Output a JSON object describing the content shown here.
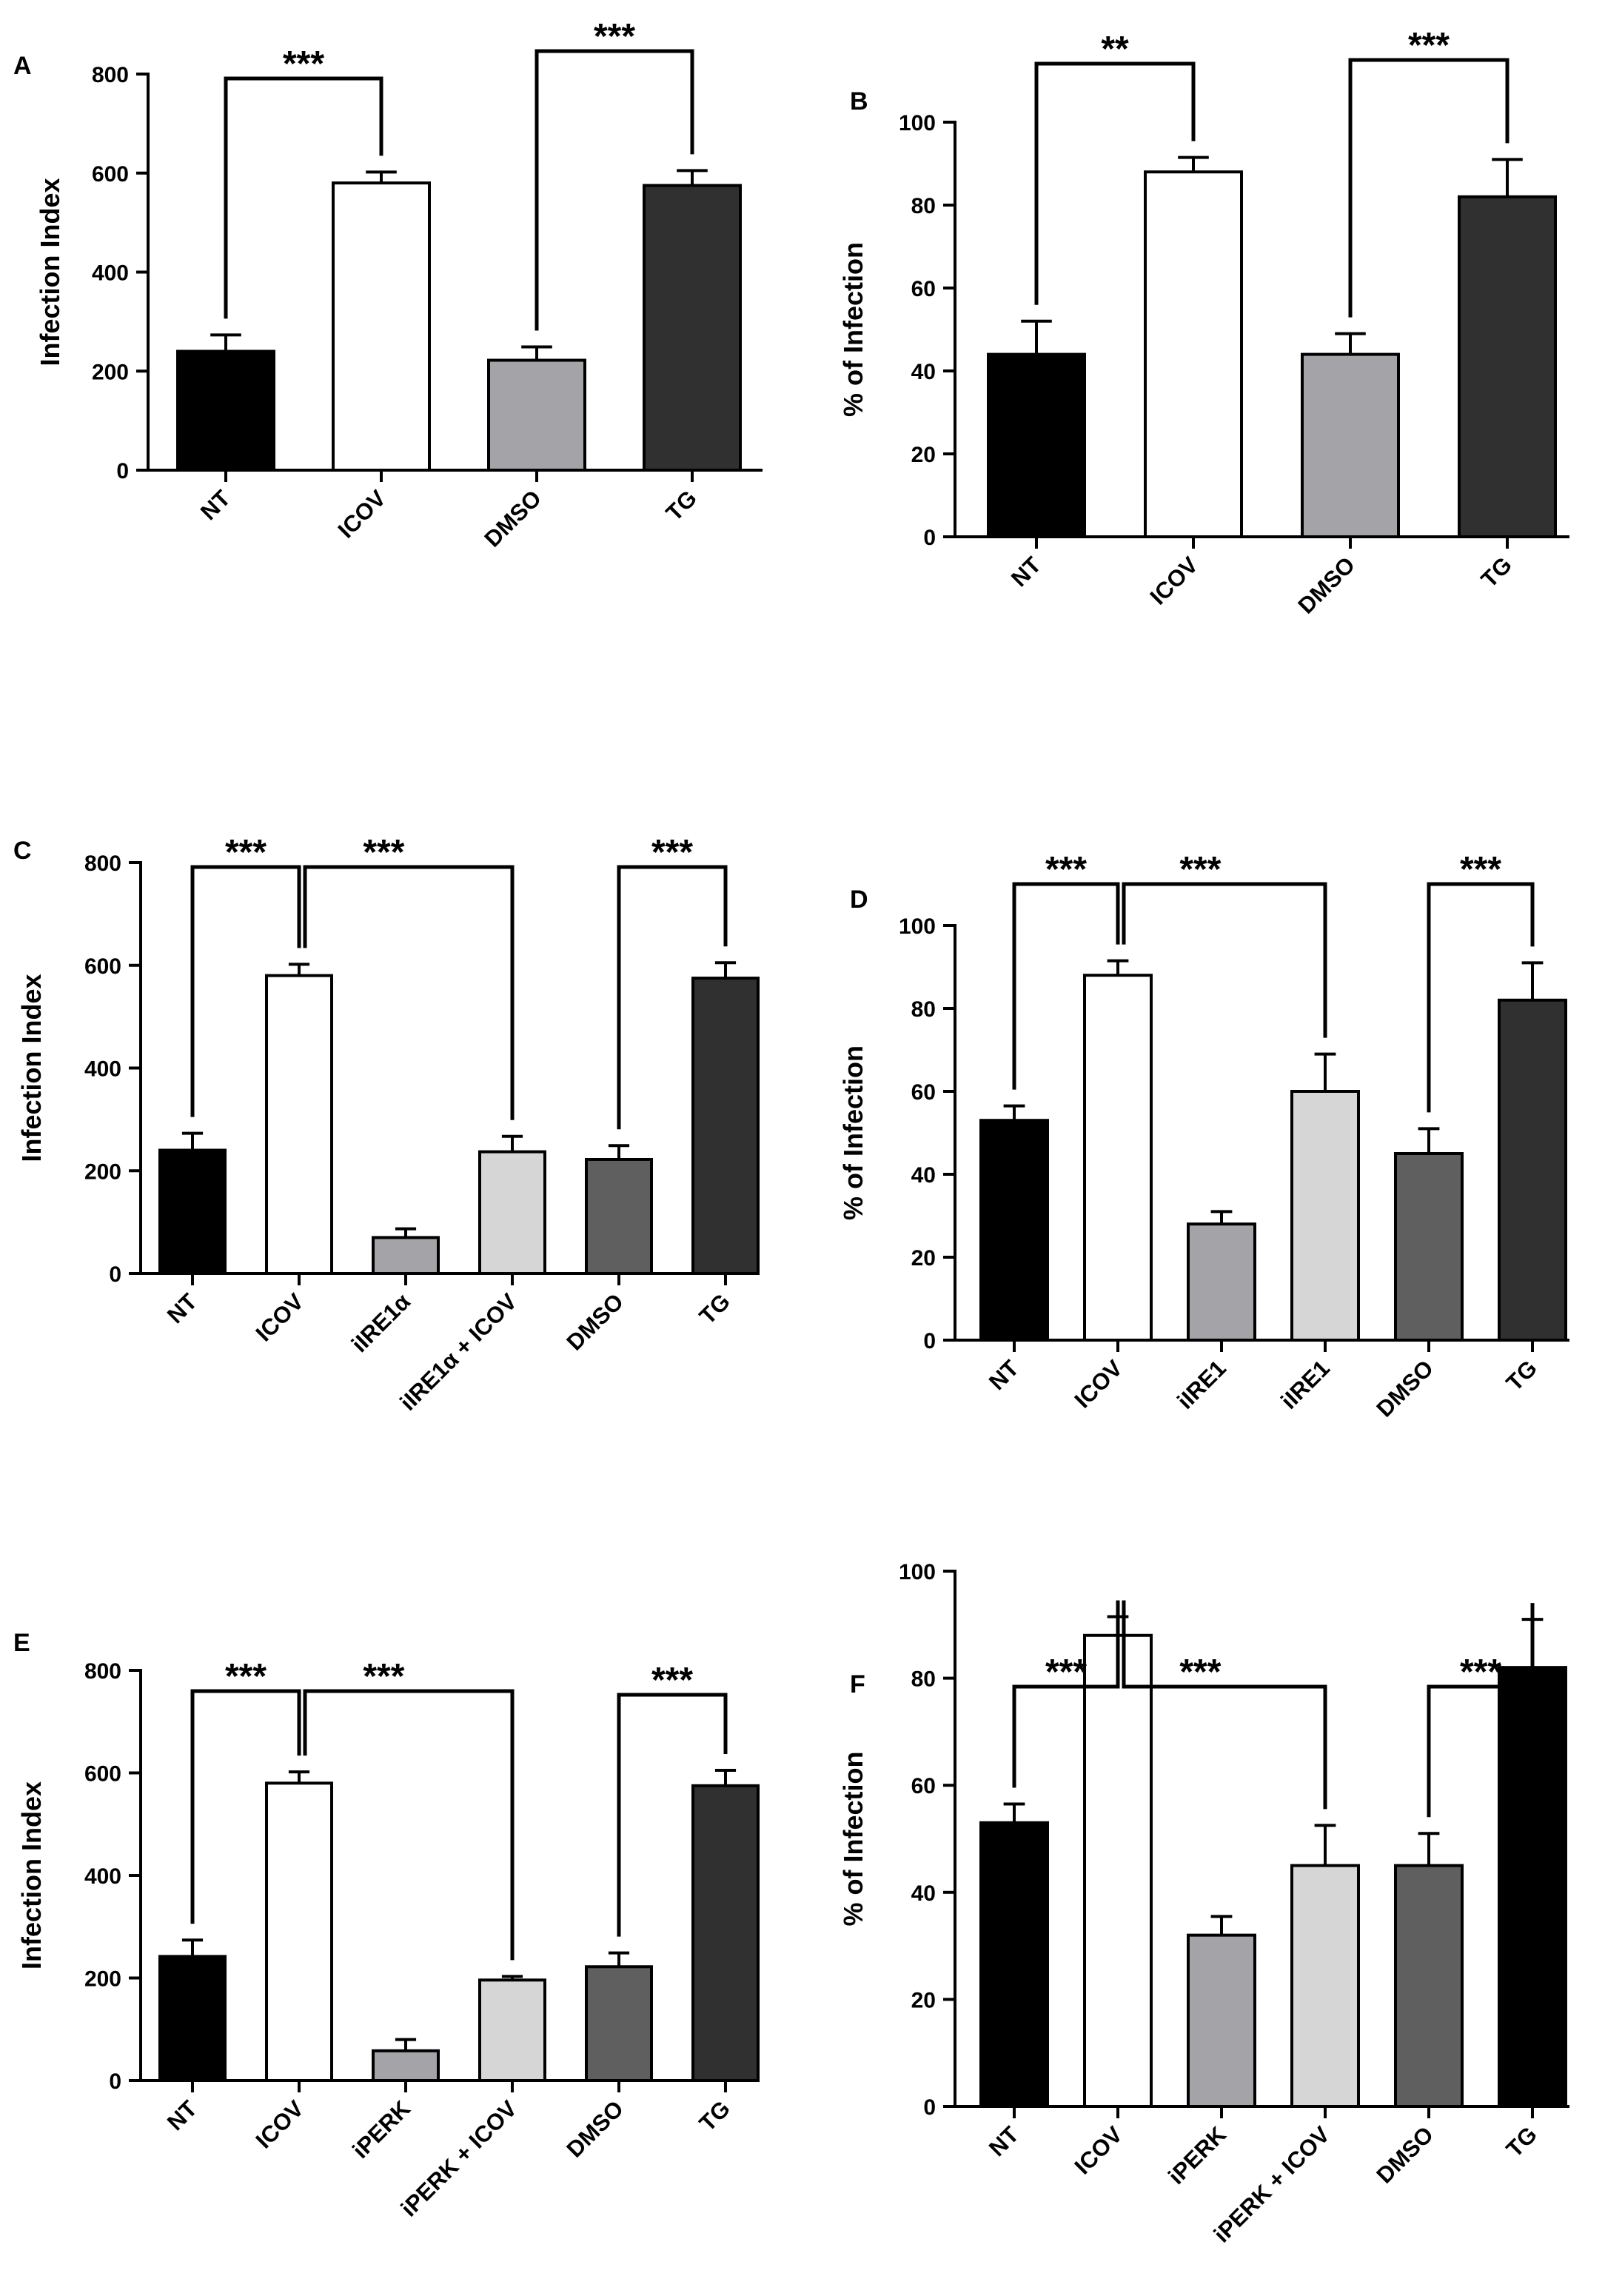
{
  "figure": {
    "colors": {
      "black": "#000000",
      "white": "#ffffff",
      "mid_gray": "#a3a3a8",
      "light_gray": "#d6d6d6",
      "dark_gray": "#5f5f5f",
      "charcoal": "#303030"
    }
  },
  "chart_data": [
    {
      "panel": "A",
      "type": "bar",
      "title": "",
      "xlabel": "",
      "ylabel": "Infection Index",
      "ylim": [
        0,
        800
      ],
      "yticks": [
        "0",
        "200",
        "400",
        "600",
        "800"
      ],
      "categories": [
        "NT",
        "ICOV",
        "DMSO",
        "TG"
      ],
      "values": [
        240,
        580,
        222,
        575
      ],
      "errors": [
        33,
        22,
        27,
        30
      ],
      "colors": [
        "black",
        "white",
        "mid_gray",
        "charcoal"
      ],
      "significance": [
        {
          "from": 0,
          "to": 1,
          "label": "***"
        },
        {
          "from": 2,
          "to": 3,
          "label": "***"
        }
      ]
    },
    {
      "panel": "B",
      "type": "bar",
      "title": "",
      "xlabel": "",
      "ylabel": "% of Infection",
      "ylim": [
        0,
        100
      ],
      "yticks": [
        "0",
        "20",
        "40",
        "60",
        "80",
        "100"
      ],
      "categories": [
        "NT",
        "ICOV",
        "DMSO",
        "TG"
      ],
      "values": [
        44,
        88,
        44,
        82
      ],
      "errors": [
        8,
        3.5,
        5,
        9
      ],
      "colors": [
        "black",
        "white",
        "mid_gray",
        "charcoal"
      ],
      "significance": [
        {
          "from": 0,
          "to": 1,
          "label": "**"
        },
        {
          "from": 2,
          "to": 3,
          "label": "***"
        }
      ]
    },
    {
      "panel": "C",
      "type": "bar",
      "title": "",
      "xlabel": "",
      "ylabel": "Infection Index",
      "ylim": [
        0,
        800
      ],
      "yticks": [
        "0",
        "200",
        "400",
        "600",
        "800"
      ],
      "categories": [
        "NT",
        "ICOV",
        "iIRE1α",
        "iIRE1α + ICOV",
        "DMSO",
        "TG"
      ],
      "values": [
        240,
        580,
        70,
        237,
        222,
        575
      ],
      "errors": [
        33,
        22,
        17,
        30,
        27,
        30
      ],
      "colors": [
        "black",
        "white",
        "mid_gray",
        "light_gray",
        "dark_gray",
        "charcoal"
      ],
      "significance": [
        {
          "from": 0,
          "to": 1,
          "label": "***"
        },
        {
          "from": 1,
          "to": 3,
          "label": "***"
        },
        {
          "from": 4,
          "to": 5,
          "label": "***"
        }
      ]
    },
    {
      "panel": "D",
      "type": "bar",
      "title": "",
      "xlabel": "",
      "ylabel": "% of Infection",
      "ylim": [
        0,
        100
      ],
      "yticks": [
        "0",
        "20",
        "40",
        "60",
        "80",
        "100"
      ],
      "categories": [
        "NT",
        "ICOV",
        "iIRE1",
        "iIRE1",
        "DMSO",
        "TG"
      ],
      "values": [
        53,
        88,
        28,
        60,
        45,
        82
      ],
      "errors": [
        3.5,
        3.5,
        3,
        9,
        6,
        9
      ],
      "colors": [
        "black",
        "white",
        "mid_gray",
        "light_gray",
        "dark_gray",
        "charcoal"
      ],
      "significance": [
        {
          "from": 0,
          "to": 1,
          "label": "***"
        },
        {
          "from": 1,
          "to": 3,
          "label": "***"
        },
        {
          "from": 4,
          "to": 5,
          "label": "***"
        }
      ]
    },
    {
      "panel": "E",
      "type": "bar",
      "title": "",
      "xlabel": "",
      "ylabel": "Infection Index",
      "ylim": [
        0,
        800
      ],
      "yticks": [
        "0",
        "200",
        "400",
        "600",
        "800"
      ],
      "categories": [
        "NT",
        "ICOV",
        "iPERK",
        "iPERK + ICOV",
        "DMSO",
        "TG"
      ],
      "values": [
        242,
        580,
        58,
        196,
        222,
        575
      ],
      "errors": [
        32,
        22,
        22,
        7,
        27,
        30
      ],
      "colors": [
        "black",
        "white",
        "mid_gray",
        "light_gray",
        "dark_gray",
        "charcoal"
      ],
      "significance": [
        {
          "from": 0,
          "to": 1,
          "label": "***"
        },
        {
          "from": 1,
          "to": 3,
          "label": "***"
        },
        {
          "from": 4,
          "to": 5,
          "label": "***"
        }
      ]
    },
    {
      "panel": "F",
      "type": "bar",
      "title": "",
      "xlabel": "",
      "ylabel": "% of Infection",
      "ylim": [
        0,
        100
      ],
      "yticks": [
        "0",
        "20",
        "40",
        "60",
        "80",
        "100"
      ],
      "categories": [
        "NT",
        "ICOV",
        "iPERK",
        "iPERK + ICOV",
        "DMSO",
        "TG"
      ],
      "values": [
        53,
        88,
        32,
        45,
        45,
        82
      ],
      "errors": [
        3.5,
        3.5,
        3.5,
        7.5,
        6,
        9
      ],
      "colors": [
        "black",
        "white",
        "mid_gray",
        "light_gray",
        "dark_gray",
        "black"
      ],
      "significance": [
        {
          "from": 0,
          "to": 1,
          "label": "***"
        },
        {
          "from": 1,
          "to": 3,
          "label": "***"
        },
        {
          "from": 4,
          "to": 5,
          "label": "***"
        }
      ]
    }
  ]
}
